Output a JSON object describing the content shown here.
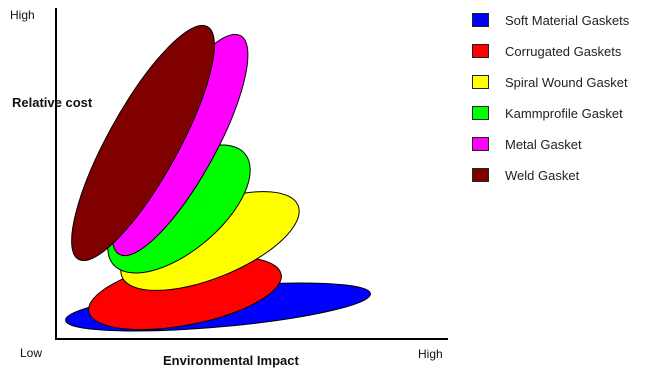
{
  "axes": {
    "y_high": "High",
    "y_label": "Relative cost",
    "x_low": "Low",
    "x_label": "Environmental Impact",
    "x_high": "High"
  },
  "gaskets": [
    {
      "name": "Soft Material Gaskets",
      "color": "#0000ff"
    },
    {
      "name": "Corrugated Gaskets",
      "color": "#ff0000"
    },
    {
      "name": "Spiral Wound Gasket",
      "color": "#ffff00"
    },
    {
      "name": "Kammprofile Gasket",
      "color": "#00ff00"
    },
    {
      "name": "Metal Gasket",
      "color": "#ff00ff"
    },
    {
      "name": "Weld Gasket",
      "color": "#800000"
    }
  ]
}
